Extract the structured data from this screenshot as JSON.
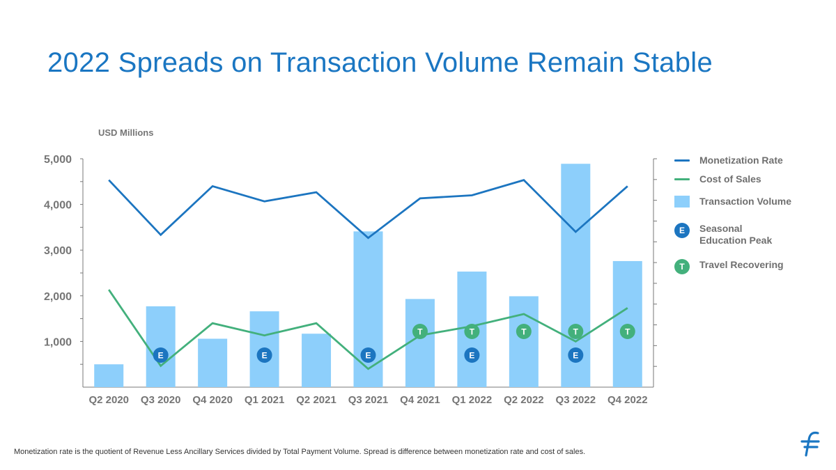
{
  "title": "2022 Spreads on Transaction Volume Remain Stable",
  "footnote": "Monetization rate is the quotient of Revenue Less Ancillary Services divided by Total Payment Volume. Spread is difference between monetization rate and cost of sales.",
  "colors": {
    "title": "#1a76c2",
    "bar": "#8dcffb",
    "monetization": "#1c75c0",
    "cost": "#43b07c",
    "badge_e": "#1c75c0",
    "badge_t": "#43b07c",
    "axis_text": "#757575"
  },
  "legend": {
    "monetization": "Monetization Rate",
    "cost": "Cost of Sales",
    "volume": "Transaction Volume",
    "education": "Seasonal\nEducation Peak",
    "education_badge": "E",
    "travel": "Travel Recovering",
    "travel_badge": "T"
  },
  "chart_data": {
    "type": "bar",
    "title": "2022 Spreads on Transaction Volume Remain Stable",
    "ylabel": "USD Millions",
    "ylim": [
      0,
      5000
    ],
    "yticks": [
      1000,
      2000,
      3000,
      4000,
      5000
    ],
    "ytick_labels": [
      "1,000",
      "2,000",
      "3,000",
      "4,000",
      "5,000"
    ],
    "categories": [
      "Q2 2020",
      "Q3 2020",
      "Q4 2020",
      "Q1 2021",
      "Q2 2021",
      "Q3 2021",
      "Q4 2021",
      "Q1 2022",
      "Q2 2022",
      "Q3 2022",
      "Q4 2022"
    ],
    "series": [
      {
        "name": "Transaction Volume",
        "kind": "bar",
        "axis": "left",
        "values": [
          500,
          1770,
          1060,
          1660,
          1170,
          3410,
          1930,
          2530,
          1990,
          4890,
          2760
        ]
      },
      {
        "name": "Monetization Rate",
        "kind": "line",
        "axis": "right",
        "values": [
          0.68,
          0.5,
          0.66,
          0.61,
          0.64,
          0.49,
          0.62,
          0.63,
          0.68,
          0.51,
          0.66
        ]
      },
      {
        "name": "Cost of Sales",
        "kind": "line",
        "axis": "right",
        "values": [
          0.32,
          0.07,
          0.21,
          0.17,
          0.21,
          0.06,
          0.17,
          0.2,
          0.24,
          0.15,
          0.26
        ]
      }
    ],
    "right_axis": {
      "ylim": [
        0,
        0.75
      ],
      "tick_count": 11,
      "labels_shown": false
    },
    "markers": {
      "E": [
        "Q3 2020",
        "Q1 2021",
        "Q3 2021",
        "Q1 2022",
        "Q3 2022"
      ],
      "T": [
        "Q4 2021",
        "Q1 2022",
        "Q2 2022",
        "Q3 2022",
        "Q4 2022"
      ]
    }
  }
}
